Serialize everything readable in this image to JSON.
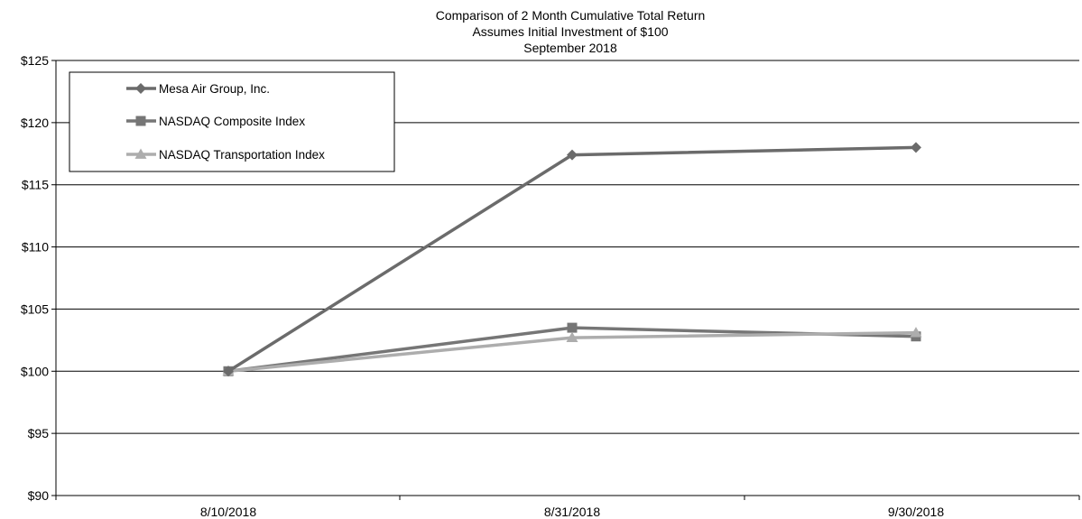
{
  "chart_data": {
    "type": "line",
    "title_lines": [
      "Comparison of 2 Month Cumulative Total Return",
      "Assumes Initial Investment of $100",
      "September 2018"
    ],
    "xlabel": "",
    "ylabel": "",
    "categories": [
      "8/10/2018",
      "8/31/2018",
      "9/30/2018"
    ],
    "y_ticks": [
      "$90",
      "$95",
      "$100",
      "$105",
      "$110",
      "$115",
      "$120",
      "$125"
    ],
    "y_tick_values": [
      90,
      95,
      100,
      105,
      110,
      115,
      120,
      125
    ],
    "ylim": [
      90,
      125
    ],
    "grid": "horizontal",
    "legend_position": "top-left",
    "series": [
      {
        "name": "Mesa Air Group, Inc.",
        "values": [
          100,
          117.4,
          118.0
        ],
        "marker": "diamond",
        "color": "#6b6b6b"
      },
      {
        "name": "NASDAQ Composite Index",
        "values": [
          100,
          103.5,
          102.8
        ],
        "marker": "square",
        "color": "#767676"
      },
      {
        "name": "NASDAQ Transportation Index",
        "values": [
          100,
          102.7,
          103.1
        ],
        "marker": "triangle",
        "color": "#adadad"
      }
    ]
  }
}
